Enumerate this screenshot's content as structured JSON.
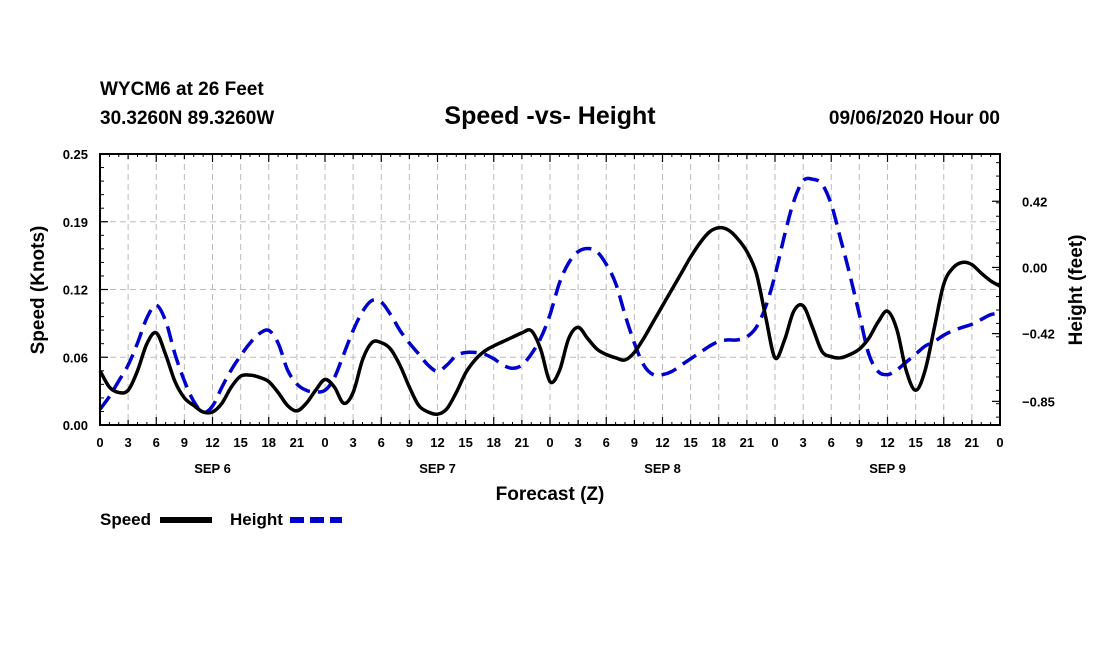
{
  "header": {
    "station": "WYCM6 at 26 Feet",
    "coords": "30.3260N 89.3260W",
    "date": "09/06/2020 Hour 00"
  },
  "chart_data": {
    "type": "line",
    "title": "Speed -vs- Height",
    "xlabel": "Forecast (Z)",
    "ylabel_left": "Speed (Knots)",
    "ylabel_right": "Height (feet)",
    "x_range_hours": [
      0,
      96
    ],
    "left_ylim": [
      0,
      0.25
    ],
    "right_ylim": [
      -1.0,
      0.72
    ],
    "left_ticks": [
      "0.00",
      "0.06",
      "0.12",
      "0.19",
      "0.25"
    ],
    "left_tick_values": [
      0,
      0.0625,
      0.125,
      0.1875,
      0.25
    ],
    "right_ticks": [
      "−0.85",
      "−0.42",
      "0.00",
      "0.42"
    ],
    "right_tick_values": [
      -0.85,
      -0.42,
      0.0,
      0.42
    ],
    "x_tick_labels": [
      "0",
      "3",
      "6",
      "9",
      "12",
      "15",
      "18",
      "21",
      "0",
      "3",
      "6",
      "9",
      "12",
      "15",
      "18",
      "21",
      "0",
      "3",
      "6",
      "9",
      "12",
      "15",
      "18",
      "21",
      "0",
      "3",
      "6",
      "9",
      "12",
      "15",
      "18",
      "21",
      "0"
    ],
    "day_labels": [
      {
        "label": "SEP 6",
        "hour": 12
      },
      {
        "label": "SEP 7",
        "hour": 36
      },
      {
        "label": "SEP 8",
        "hour": 60
      },
      {
        "label": "SEP 9",
        "hour": 84
      }
    ],
    "series": [
      {
        "name": "Speed",
        "axis": "left",
        "color": "#000000",
        "style": "solid",
        "x": [
          0,
          1,
          2,
          3,
          4,
          5,
          6,
          7,
          8,
          9,
          10,
          11,
          12,
          13,
          14,
          15,
          16,
          17,
          18,
          19,
          20,
          21,
          22,
          23,
          24,
          25,
          26,
          27,
          28,
          29,
          30,
          31,
          32,
          33,
          34,
          35,
          36,
          37,
          38,
          39,
          40,
          41,
          42,
          43,
          44,
          45,
          46,
          47,
          48,
          49,
          50,
          51,
          52,
          53,
          54,
          55,
          56,
          57,
          58,
          59,
          60,
          61,
          62,
          63,
          64,
          65,
          66,
          67,
          68,
          69,
          70,
          71,
          72,
          73,
          74,
          75,
          76,
          77,
          78,
          79,
          80,
          81,
          82,
          83,
          84,
          85,
          86,
          87,
          88,
          89,
          90,
          91,
          92,
          93,
          94,
          95,
          96
        ],
        "values": [
          0.05,
          0.035,
          0.03,
          0.032,
          0.05,
          0.075,
          0.085,
          0.065,
          0.04,
          0.025,
          0.018,
          0.012,
          0.012,
          0.02,
          0.035,
          0.045,
          0.046,
          0.044,
          0.04,
          0.03,
          0.018,
          0.013,
          0.02,
          0.032,
          0.042,
          0.035,
          0.02,
          0.03,
          0.06,
          0.076,
          0.076,
          0.07,
          0.055,
          0.035,
          0.018,
          0.012,
          0.01,
          0.015,
          0.03,
          0.048,
          0.06,
          0.068,
          0.073,
          0.077,
          0.081,
          0.085,
          0.087,
          0.07,
          0.04,
          0.05,
          0.08,
          0.09,
          0.08,
          0.07,
          0.065,
          0.062,
          0.06,
          0.067,
          0.08,
          0.095,
          0.11,
          0.125,
          0.14,
          0.155,
          0.168,
          0.178,
          0.182,
          0.18,
          0.172,
          0.16,
          0.14,
          0.1,
          0.062,
          0.078,
          0.105,
          0.11,
          0.09,
          0.068,
          0.063,
          0.062,
          0.065,
          0.07,
          0.08,
          0.095,
          0.105,
          0.088,
          0.05,
          0.032,
          0.05,
          0.09,
          0.13,
          0.145,
          0.15,
          0.148,
          0.14,
          0.133,
          0.128
        ]
      },
      {
        "name": "Height",
        "axis": "right",
        "color": "#0000cc",
        "style": "dashed",
        "x": [
          0,
          1,
          2,
          3,
          4,
          5,
          6,
          7,
          8,
          9,
          10,
          11,
          12,
          13,
          14,
          15,
          16,
          17,
          18,
          19,
          20,
          21,
          22,
          23,
          24,
          25,
          26,
          27,
          28,
          29,
          30,
          31,
          32,
          33,
          34,
          35,
          36,
          37,
          38,
          39,
          40,
          41,
          42,
          43,
          44,
          45,
          46,
          47,
          48,
          49,
          50,
          51,
          52,
          53,
          54,
          55,
          56,
          57,
          58,
          59,
          60,
          61,
          62,
          63,
          64,
          65,
          66,
          67,
          68,
          69,
          70,
          71,
          72,
          73,
          74,
          75,
          76,
          77,
          78,
          79,
          80,
          81,
          82,
          83,
          84,
          85,
          86,
          87,
          88,
          89,
          90,
          91,
          92,
          93,
          94,
          95,
          96
        ],
        "values": [
          -0.9,
          -0.82,
          -0.72,
          -0.62,
          -0.48,
          -0.32,
          -0.24,
          -0.34,
          -0.55,
          -0.72,
          -0.85,
          -0.92,
          -0.88,
          -0.76,
          -0.65,
          -0.56,
          -0.48,
          -0.42,
          -0.4,
          -0.48,
          -0.65,
          -0.74,
          -0.78,
          -0.79,
          -0.78,
          -0.7,
          -0.55,
          -0.4,
          -0.28,
          -0.21,
          -0.22,
          -0.3,
          -0.4,
          -0.48,
          -0.55,
          -0.62,
          -0.66,
          -0.62,
          -0.56,
          -0.54,
          -0.54,
          -0.55,
          -0.58,
          -0.62,
          -0.64,
          -0.62,
          -0.55,
          -0.45,
          -0.3,
          -0.1,
          0.03,
          0.1,
          0.12,
          0.1,
          0.02,
          -0.1,
          -0.3,
          -0.48,
          -0.62,
          -0.68,
          -0.68,
          -0.66,
          -0.62,
          -0.58,
          -0.54,
          -0.5,
          -0.47,
          -0.46,
          -0.46,
          -0.44,
          -0.38,
          -0.25,
          -0.05,
          0.2,
          0.42,
          0.55,
          0.56,
          0.53,
          0.4,
          0.18,
          -0.05,
          -0.3,
          -0.55,
          -0.66,
          -0.68,
          -0.65,
          -0.6,
          -0.55,
          -0.5,
          -0.47,
          -0.43,
          -0.4,
          -0.38,
          -0.36,
          -0.33,
          -0.3,
          -0.29
        ]
      }
    ],
    "legend": [
      {
        "label": "Speed",
        "color": "#000000",
        "style": "solid"
      },
      {
        "label": "Height",
        "color": "#0000cc",
        "style": "dashed"
      }
    ],
    "legend_placement": "bottom-left"
  }
}
